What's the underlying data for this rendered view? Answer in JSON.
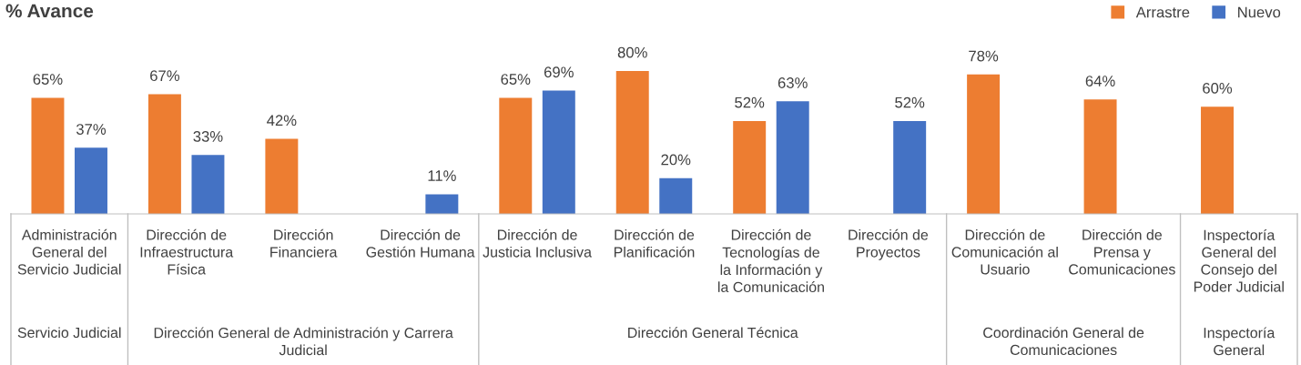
{
  "chart_data": {
    "type": "bar",
    "title": "% Avance",
    "categories": [
      "Administración\nGeneral del\nServicio Judicial",
      "Dirección de\nInfraestructura\nFísica",
      "Dirección\nFinanciera",
      "Dirección de\nGestión Humana",
      "Dirección de\nJusticia Inclusiva",
      "Dirección de\nPlanificación",
      "Dirección de\nTecnologías de\nla Información y\nla Comunicación",
      "Dirección de\nProyectos",
      "Dirección de\nComunicación al\nUsuario",
      "Dirección de\nPrensa y\nComunicaciones",
      "Inspectoría\nGeneral del\nConsejo del\nPoder Judicial"
    ],
    "series": [
      {
        "name": "Arrastre",
        "color": "#ed7d31",
        "values": [
          65,
          67,
          42,
          null,
          65,
          80,
          52,
          null,
          78,
          64,
          60
        ],
        "value_labels": [
          "65%",
          "67%",
          "42%",
          null,
          "65%",
          "80%",
          "52%",
          null,
          "78%",
          "64%",
          "60%"
        ]
      },
      {
        "name": "Nuevo",
        "color": "#4472c4",
        "values": [
          37,
          33,
          null,
          11,
          69,
          20,
          63,
          52,
          null,
          null,
          null
        ],
        "value_labels": [
          "37%",
          "33%",
          null,
          "11%",
          "69%",
          "20%",
          "63%",
          "52%",
          null,
          null,
          null
        ]
      }
    ],
    "annotations": [
      "Servicio Judicial",
      "Dirección General de Administración y Carrera\nJudicial",
      "Dirección General Técnica",
      "Coordinación General de\nComunicaciones",
      "Inspectoría\nGeneral"
    ],
    "legend": "top right"
  }
}
